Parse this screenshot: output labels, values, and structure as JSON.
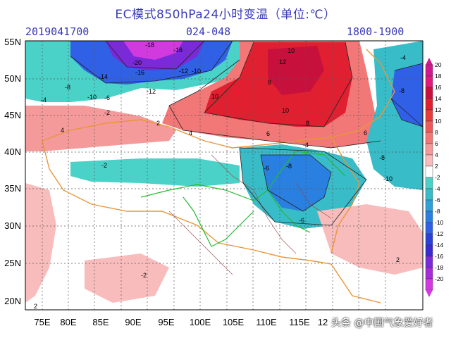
{
  "title": "EC模式850hPa24小时变温（单位:℃）",
  "init_time": "2019041700",
  "forecast_range": "024-048",
  "period": "1800-1900",
  "lat_labels": [
    "55N",
    "50N",
    "45N",
    "40N",
    "35N",
    "30N",
    "25N",
    "20N"
  ],
  "lon_labels": [
    "75E",
    "80E",
    "85E",
    "90E",
    "95E",
    "100E",
    "105E",
    "110E",
    "115E",
    "12"
  ],
  "colorbar": {
    "labels": [
      "20",
      "18",
      "16",
      "14",
      "12",
      "10",
      "8",
      "6",
      "4",
      "2",
      "-2",
      "-4",
      "-6",
      "-8",
      "-10",
      "-12",
      "-14",
      "-16",
      "-18",
      "-20"
    ],
    "colors": [
      "#d21a8c",
      "#e0197a",
      "#c8103c",
      "#e02030",
      "#e83c3c",
      "#ee5a5a",
      "#f27878",
      "#f59a9a",
      "#f8bcbc",
      "#ffffff",
      "#4ad2c8",
      "#38bcc8",
      "#30a0d8",
      "#2a80e0",
      "#3060e6",
      "#2a40d8",
      "#3a2ad0",
      "#7a2ad8",
      "#a82ad8",
      "#d23ae0"
    ]
  },
  "contour_labels": [
    {
      "t": "-18"
    },
    {
      "t": "-16"
    },
    {
      "t": "-20"
    },
    {
      "t": "-14"
    },
    {
      "t": "-16"
    },
    {
      "t": "-12"
    },
    {
      "t": "-10"
    },
    {
      "t": "-8"
    },
    {
      "t": "-6"
    },
    {
      "t": "-4"
    },
    {
      "t": "-10"
    },
    {
      "t": "-12"
    },
    {
      "t": "-2"
    },
    {
      "t": "10"
    },
    {
      "t": "12"
    },
    {
      "t": "10"
    },
    {
      "t": "8"
    },
    {
      "t": "10"
    },
    {
      "t": "8"
    },
    {
      "t": "6"
    },
    {
      "t": "4"
    },
    {
      "t": "2"
    },
    {
      "t": "-6"
    },
    {
      "t": "-8"
    },
    {
      "t": "-4"
    },
    {
      "t": "-2"
    },
    {
      "t": "-8"
    },
    {
      "t": "-10"
    },
    {
      "t": "-6"
    },
    {
      "t": "2"
    },
    {
      "t": "4"
    },
    {
      "t": "-2"
    },
    {
      "t": "2"
    },
    {
      "t": "-4"
    },
    {
      "t": "-8"
    },
    {
      "t": "6"
    }
  ],
  "watermark": "头条 @中国气象爱好者"
}
